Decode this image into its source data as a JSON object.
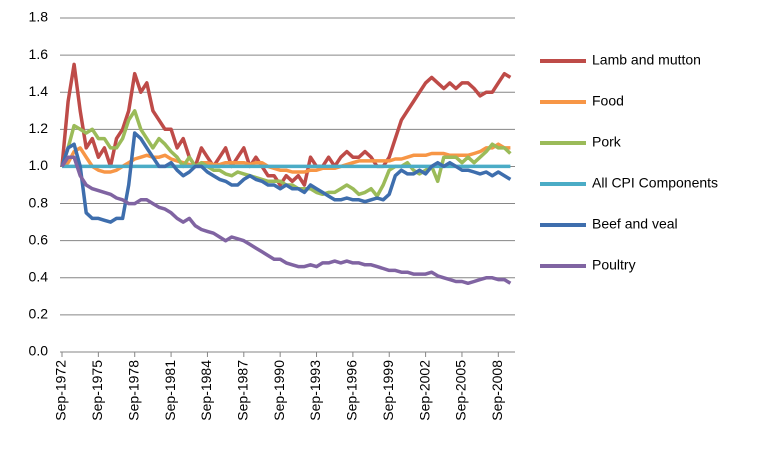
{
  "chart_data": {
    "type": "line",
    "categories": [
      "Sep-1972",
      null,
      null,
      null,
      null,
      null,
      "Sep-1975",
      null,
      null,
      null,
      null,
      null,
      "Sep-1978",
      null,
      null,
      null,
      null,
      null,
      "Sep-1981",
      null,
      null,
      null,
      null,
      null,
      "Sep-1984",
      null,
      null,
      null,
      null,
      null,
      "Sep-1987",
      null,
      null,
      null,
      null,
      null,
      "Sep-1990",
      null,
      null,
      null,
      null,
      null,
      "Sep-1993",
      null,
      null,
      null,
      null,
      null,
      "Sep-1996",
      null,
      null,
      null,
      null,
      null,
      "Sep-1999",
      null,
      null,
      null,
      null,
      null,
      "Sep-2002",
      null,
      null,
      null,
      null,
      null,
      "Sep-2005",
      null,
      null,
      null,
      null,
      null,
      "Sep-2008",
      null,
      null
    ],
    "series": [
      {
        "name": "Lamb and mutton",
        "color": "#be4b48",
        "values": [
          1.0,
          1.35,
          1.55,
          1.3,
          1.1,
          1.15,
          1.05,
          1.1,
          1.0,
          1.15,
          1.2,
          1.3,
          1.5,
          1.4,
          1.45,
          1.3,
          1.25,
          1.2,
          1.2,
          1.1,
          1.15,
          1.05,
          1.0,
          1.1,
          1.05,
          1.0,
          1.05,
          1.1,
          1.0,
          1.05,
          1.1,
          1.0,
          1.05,
          1.0,
          0.95,
          0.95,
          0.9,
          0.95,
          0.92,
          0.95,
          0.9,
          1.05,
          1.0,
          1.0,
          1.05,
          1.0,
          1.05,
          1.08,
          1.05,
          1.05,
          1.08,
          1.05,
          1.0,
          1.0,
          1.05,
          1.15,
          1.25,
          1.3,
          1.35,
          1.4,
          1.45,
          1.48,
          1.45,
          1.42,
          1.45,
          1.42,
          1.45,
          1.45,
          1.42,
          1.38,
          1.4,
          1.4,
          1.45,
          1.5,
          1.48
        ]
      },
      {
        "name": "Food",
        "color": "#f79646",
        "values": [
          1.0,
          1.02,
          1.08,
          1.1,
          1.05,
          1.0,
          0.98,
          0.97,
          0.97,
          0.98,
          1.0,
          1.02,
          1.04,
          1.05,
          1.06,
          1.05,
          1.05,
          1.06,
          1.04,
          1.03,
          1.02,
          1.01,
          1.0,
          1.02,
          1.02,
          1.01,
          1.01,
          1.02,
          1.02,
          1.02,
          1.02,
          1.01,
          1.02,
          1.02,
          1.0,
          0.99,
          0.98,
          0.98,
          0.97,
          0.97,
          0.97,
          0.98,
          0.98,
          0.99,
          0.99,
          0.99,
          1.0,
          1.01,
          1.02,
          1.03,
          1.03,
          1.03,
          1.03,
          1.03,
          1.03,
          1.04,
          1.04,
          1.05,
          1.06,
          1.06,
          1.06,
          1.07,
          1.07,
          1.07,
          1.06,
          1.06,
          1.06,
          1.06,
          1.07,
          1.08,
          1.1,
          1.1,
          1.12,
          1.1,
          1.1
        ]
      },
      {
        "name": "Pork",
        "color": "#9bbb59",
        "values": [
          1.0,
          1.1,
          1.22,
          1.2,
          1.18,
          1.2,
          1.15,
          1.15,
          1.1,
          1.1,
          1.15,
          1.25,
          1.3,
          1.2,
          1.15,
          1.1,
          1.15,
          1.12,
          1.08,
          1.05,
          1.0,
          1.05,
          1.0,
          1.02,
          1.0,
          0.98,
          0.98,
          0.96,
          0.95,
          0.97,
          0.96,
          0.95,
          0.94,
          0.93,
          0.92,
          0.92,
          0.92,
          0.9,
          0.9,
          0.88,
          0.88,
          0.88,
          0.86,
          0.85,
          0.86,
          0.86,
          0.88,
          0.9,
          0.88,
          0.85,
          0.86,
          0.88,
          0.84,
          0.9,
          0.98,
          1.0,
          1.0,
          1.02,
          0.98,
          0.96,
          0.98,
          1.0,
          0.92,
          1.05,
          1.05,
          1.05,
          1.02,
          1.05,
          1.02,
          1.05,
          1.08,
          1.12,
          1.1,
          1.1,
          1.07
        ]
      },
      {
        "name": "All CPI Components",
        "color": "#4bacc6",
        "values": [
          1.0,
          1.0,
          1.0,
          1.0,
          1.0,
          1.0,
          1.0,
          1.0,
          1.0,
          1.0,
          1.0,
          1.0,
          1.0,
          1.0,
          1.0,
          1.0,
          1.0,
          1.0,
          1.0,
          1.0,
          1.0,
          1.0,
          1.0,
          1.0,
          1.0,
          1.0,
          1.0,
          1.0,
          1.0,
          1.0,
          1.0,
          1.0,
          1.0,
          1.0,
          1.0,
          1.0,
          1.0,
          1.0,
          1.0,
          1.0,
          1.0,
          1.0,
          1.0,
          1.0,
          1.0,
          1.0,
          1.0,
          1.0,
          1.0,
          1.0,
          1.0,
          1.0,
          1.0,
          1.0,
          1.0,
          1.0,
          1.0,
          1.0,
          1.0,
          1.0,
          1.0,
          1.0,
          1.0,
          1.0,
          1.0,
          1.0,
          1.0,
          1.0,
          1.0,
          1.0,
          1.0,
          1.0,
          1.0,
          1.0,
          1.0
        ]
      },
      {
        "name": "Beef and veal",
        "color": "#3e6ead",
        "values": [
          1.0,
          1.1,
          1.12,
          1.0,
          0.75,
          0.72,
          0.72,
          0.71,
          0.7,
          0.72,
          0.72,
          0.9,
          1.18,
          1.15,
          1.1,
          1.05,
          1.0,
          1.0,
          1.02,
          0.98,
          0.95,
          0.97,
          1.0,
          1.0,
          0.97,
          0.95,
          0.93,
          0.92,
          0.9,
          0.9,
          0.93,
          0.95,
          0.93,
          0.92,
          0.9,
          0.9,
          0.88,
          0.9,
          0.88,
          0.88,
          0.86,
          0.9,
          0.88,
          0.86,
          0.84,
          0.82,
          0.82,
          0.83,
          0.82,
          0.82,
          0.81,
          0.82,
          0.83,
          0.82,
          0.85,
          0.95,
          0.98,
          0.96,
          0.96,
          0.98,
          0.96,
          1.0,
          1.02,
          1.0,
          1.02,
          1.0,
          0.98,
          0.98,
          0.97,
          0.96,
          0.97,
          0.95,
          0.97,
          0.95,
          0.93
        ]
      },
      {
        "name": "Poultry",
        "color": "#8064a2",
        "values": [
          1.0,
          1.05,
          1.05,
          0.95,
          0.9,
          0.88,
          0.87,
          0.86,
          0.85,
          0.83,
          0.82,
          0.8,
          0.8,
          0.82,
          0.82,
          0.8,
          0.78,
          0.77,
          0.75,
          0.72,
          0.7,
          0.72,
          0.68,
          0.66,
          0.65,
          0.64,
          0.62,
          0.6,
          0.62,
          0.61,
          0.6,
          0.58,
          0.56,
          0.54,
          0.52,
          0.5,
          0.5,
          0.48,
          0.47,
          0.46,
          0.46,
          0.47,
          0.46,
          0.48,
          0.48,
          0.49,
          0.48,
          0.49,
          0.48,
          0.48,
          0.47,
          0.47,
          0.46,
          0.45,
          0.44,
          0.44,
          0.43,
          0.43,
          0.42,
          0.42,
          0.42,
          0.43,
          0.41,
          0.4,
          0.39,
          0.38,
          0.38,
          0.37,
          0.38,
          0.39,
          0.4,
          0.4,
          0.39,
          0.39,
          0.37
        ]
      }
    ],
    "ylim": [
      0,
      1.8
    ],
    "yticks": [
      {
        "value": 0,
        "label": "0.0"
      },
      0.2,
      0.4,
      0.6,
      0.8,
      {
        "value": 1,
        "label": "1.0"
      },
      1.2,
      1.4,
      1.6,
      1.8
    ],
    "grid": true,
    "legend": "right"
  }
}
